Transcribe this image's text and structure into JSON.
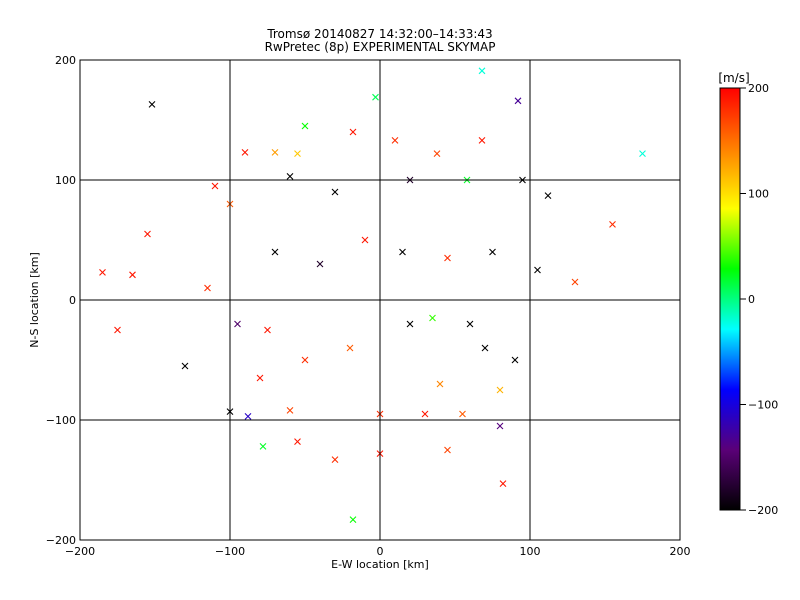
{
  "title_line1": "Tromsø 20140827 14:32:00–14:33:43",
  "title_line2": "RwPretec (8p) EXPERIMENTAL SKYMAP",
  "chart_data": {
    "type": "scatter",
    "title": "Tromsø 20140827 14:32:00–14:33:43 RwPretec (8p) EXPERIMENTAL SKYMAP",
    "xlabel": "E-W location [km]",
    "ylabel": "N-S location [km]",
    "xlim": [
      -200,
      200
    ],
    "ylim": [
      -200,
      200
    ],
    "xticks": [
      -200,
      -100,
      0,
      100,
      200
    ],
    "yticks": [
      -200,
      -100,
      0,
      100,
      200
    ],
    "grid": true,
    "colorbar": {
      "label": "[m/s]",
      "range": [
        -200,
        200
      ],
      "ticks": [
        200,
        100,
        0,
        -100,
        -200
      ],
      "colormap": [
        "#000000",
        "#5a0078",
        "#0000ff",
        "#00ffff",
        "#00ff00",
        "#ffff00",
        "#ff8000",
        "#ff0000"
      ]
    },
    "markers": {
      "cross": "×",
      "dot": "·"
    },
    "points": [
      {
        "x": -152,
        "y": 163,
        "v": -200,
        "m": "cross"
      },
      {
        "x": 92,
        "y": 166,
        "v": -130,
        "m": "cross"
      },
      {
        "x": 68,
        "y": 191,
        "v": -20,
        "m": "cross"
      },
      {
        "x": -3,
        "y": 169,
        "v": 10,
        "m": "cross"
      },
      {
        "x": 175,
        "y": 122,
        "v": -20,
        "m": "cross"
      },
      {
        "x": -50,
        "y": 145,
        "v": 30,
        "m": "cross"
      },
      {
        "x": -90,
        "y": 123,
        "v": 190,
        "m": "cross"
      },
      {
        "x": -70,
        "y": 123,
        "v": 130,
        "m": "cross"
      },
      {
        "x": -55,
        "y": 122,
        "v": 110,
        "m": "cross"
      },
      {
        "x": -18,
        "y": 140,
        "v": 190,
        "m": "cross"
      },
      {
        "x": 10,
        "y": 133,
        "v": 180,
        "m": "cross"
      },
      {
        "x": 38,
        "y": 122,
        "v": 170,
        "m": "cross"
      },
      {
        "x": 68,
        "y": 133,
        "v": 190,
        "m": "cross"
      },
      {
        "x": -110,
        "y": 95,
        "v": 190,
        "m": "cross"
      },
      {
        "x": -100,
        "y": 80,
        "v": 160,
        "m": "cross"
      },
      {
        "x": -60,
        "y": 103,
        "v": -200,
        "m": "cross"
      },
      {
        "x": -30,
        "y": 90,
        "v": -200,
        "m": "cross"
      },
      {
        "x": 20,
        "y": 100,
        "v": -180,
        "m": "cross"
      },
      {
        "x": 58,
        "y": 100,
        "v": 20,
        "m": "cross"
      },
      {
        "x": 95,
        "y": 100,
        "v": -200,
        "m": "cross"
      },
      {
        "x": 112,
        "y": 87,
        "v": -200,
        "m": "cross"
      },
      {
        "x": 155,
        "y": 63,
        "v": 180,
        "m": "cross"
      },
      {
        "x": -155,
        "y": 55,
        "v": 190,
        "m": "cross"
      },
      {
        "x": -185,
        "y": 23,
        "v": 190,
        "m": "cross"
      },
      {
        "x": -165,
        "y": 21,
        "v": 190,
        "m": "cross"
      },
      {
        "x": -115,
        "y": 10,
        "v": 180,
        "m": "cross"
      },
      {
        "x": -70,
        "y": 40,
        "v": -200,
        "m": "cross"
      },
      {
        "x": -40,
        "y": 30,
        "v": -180,
        "m": "cross"
      },
      {
        "x": -10,
        "y": 50,
        "v": 190,
        "m": "cross"
      },
      {
        "x": 15,
        "y": 40,
        "v": -200,
        "m": "cross"
      },
      {
        "x": 45,
        "y": 35,
        "v": 180,
        "m": "cross"
      },
      {
        "x": 75,
        "y": 40,
        "v": -200,
        "m": "cross"
      },
      {
        "x": 105,
        "y": 25,
        "v": -200,
        "m": "cross"
      },
      {
        "x": 130,
        "y": 15,
        "v": 170,
        "m": "cross"
      },
      {
        "x": -175,
        "y": -25,
        "v": 190,
        "m": "cross"
      },
      {
        "x": -95,
        "y": -20,
        "v": -150,
        "m": "cross"
      },
      {
        "x": -75,
        "y": -25,
        "v": 190,
        "m": "cross"
      },
      {
        "x": -130,
        "y": -55,
        "v": -200,
        "m": "cross"
      },
      {
        "x": -80,
        "y": -65,
        "v": 190,
        "m": "cross"
      },
      {
        "x": -50,
        "y": -50,
        "v": 180,
        "m": "cross"
      },
      {
        "x": -20,
        "y": -40,
        "v": 160,
        "m": "cross"
      },
      {
        "x": 20,
        "y": -20,
        "v": -200,
        "m": "cross"
      },
      {
        "x": 35,
        "y": -15,
        "v": 40,
        "m": "cross"
      },
      {
        "x": 60,
        "y": -20,
        "v": -200,
        "m": "cross"
      },
      {
        "x": 70,
        "y": -40,
        "v": -200,
        "m": "cross"
      },
      {
        "x": 90,
        "y": -50,
        "v": -200,
        "m": "cross"
      },
      {
        "x": 40,
        "y": -70,
        "v": 140,
        "m": "cross"
      },
      {
        "x": 80,
        "y": -75,
        "v": 120,
        "m": "cross"
      },
      {
        "x": -100,
        "y": -93,
        "v": -200,
        "m": "cross"
      },
      {
        "x": -88,
        "y": -97,
        "v": -110,
        "m": "cross"
      },
      {
        "x": -60,
        "y": -92,
        "v": 170,
        "m": "cross"
      },
      {
        "x": 0,
        "y": -95,
        "v": 180,
        "m": "cross"
      },
      {
        "x": 30,
        "y": -95,
        "v": 190,
        "m": "cross"
      },
      {
        "x": 55,
        "y": -95,
        "v": 160,
        "m": "cross"
      },
      {
        "x": 80,
        "y": -105,
        "v": -140,
        "m": "cross"
      },
      {
        "x": -78,
        "y": -122,
        "v": 20,
        "m": "cross"
      },
      {
        "x": -55,
        "y": -118,
        "v": 190,
        "m": "cross"
      },
      {
        "x": -30,
        "y": -133,
        "v": 180,
        "m": "cross"
      },
      {
        "x": 0,
        "y": -128,
        "v": 190,
        "m": "cross"
      },
      {
        "x": 82,
        "y": -153,
        "v": 190,
        "m": "cross"
      },
      {
        "x": -18,
        "y": -183,
        "v": 30,
        "m": "cross"
      },
      {
        "x": 45,
        "y": -125,
        "v": 170,
        "m": "cross"
      }
    ]
  }
}
